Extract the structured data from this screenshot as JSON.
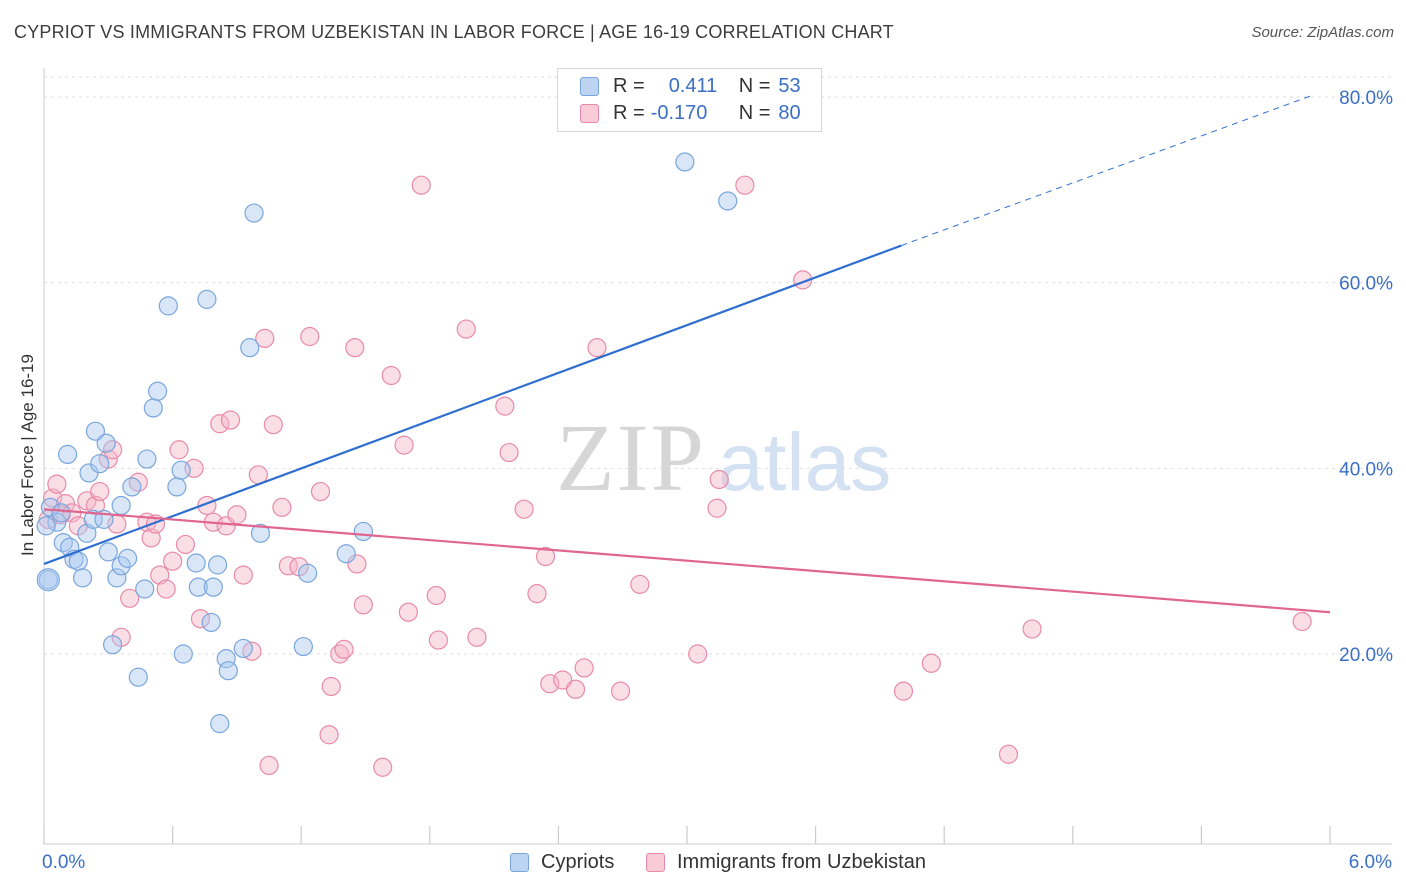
{
  "title": "CYPRIOT VS IMMIGRANTS FROM UZBEKISTAN IN LABOR FORCE | AGE 16-19 CORRELATION CHART",
  "source": "Source: ZipAtlas.com",
  "watermark": {
    "zip": "ZIP",
    "atlas": "atlas"
  },
  "legend": {
    "rows": [
      {
        "r_label": "R =",
        "r_value": "0.411",
        "n_label": "N =",
        "n_value": "53",
        "color": "#a9c7ef"
      },
      {
        "r_label": "R =",
        "r_value": "-0.170",
        "n_label": "N =",
        "n_value": "80",
        "color": "#f5b6c8"
      }
    ]
  },
  "bottom_legend": [
    {
      "label": "Cypriots",
      "color": "#a9c7ef"
    },
    {
      "label": "Immigrants from Uzbekistan",
      "color": "#f5b6c8"
    }
  ],
  "x_tick_left": "0.0%",
  "x_tick_right": "6.0%",
  "chart_data": {
    "type": "scatter",
    "title": "CYPRIOT VS IMMIGRANTS FROM UZBEKISTAN IN LABOR FORCE | AGE 16-19 CORRELATION CHART",
    "xlabel": "",
    "ylabel": "In Labor Force | Age 16-19",
    "xlim": [
      0,
      6.0
    ],
    "ylim": [
      0,
      82
    ],
    "y_ticks": [
      {
        "value": 20,
        "label": "20.0%"
      },
      {
        "value": 40,
        "label": "40.0%"
      },
      {
        "value": 60,
        "label": "60.0%"
      },
      {
        "value": 80,
        "label": "80.0%"
      }
    ],
    "x_ticks": [
      0,
      0.6,
      1.2,
      1.8,
      2.4,
      3.0,
      3.6,
      4.2,
      4.8,
      5.4,
      6.0
    ],
    "grid": true,
    "series": [
      {
        "name": "Cypriots",
        "color": "#a9c7ef",
        "stroke": "#7aa6dd",
        "trend": {
          "x": [
            0,
            4.0
          ],
          "y": [
            29.7,
            64.0
          ],
          "color": "#2f6fcf",
          "dashed_extension": {
            "x": [
              4.0,
              5.92
            ],
            "y": [
              64.0,
              80.2
            ]
          }
        },
        "points": [
          [
            0.03,
            35.8
          ],
          [
            0.06,
            34.2
          ],
          [
            0.08,
            35.2
          ],
          [
            0.09,
            32.0
          ],
          [
            0.11,
            41.5
          ],
          [
            0.12,
            31.5
          ],
          [
            0.14,
            30.2
          ],
          [
            0.16,
            30.0
          ],
          [
            0.18,
            28.2
          ],
          [
            0.2,
            33.0
          ],
          [
            0.21,
            39.5
          ],
          [
            0.23,
            34.5
          ],
          [
            0.24,
            44.0
          ],
          [
            0.26,
            40.5
          ],
          [
            0.28,
            34.5
          ],
          [
            0.29,
            42.7
          ],
          [
            0.3,
            31.0
          ],
          [
            0.32,
            21.0
          ],
          [
            0.34,
            28.2
          ],
          [
            0.36,
            36.0
          ],
          [
            0.36,
            29.5
          ],
          [
            0.39,
            30.3
          ],
          [
            0.41,
            38.0
          ],
          [
            0.44,
            17.5
          ],
          [
            0.47,
            27.0
          ],
          [
            0.48,
            41.0
          ],
          [
            0.51,
            46.5
          ],
          [
            0.53,
            48.3
          ],
          [
            0.58,
            57.5
          ],
          [
            0.62,
            38.0
          ],
          [
            0.64,
            39.8
          ],
          [
            0.65,
            20.0
          ],
          [
            0.71,
            29.8
          ],
          [
            0.72,
            27.2
          ],
          [
            0.76,
            58.2
          ],
          [
            0.78,
            23.4
          ],
          [
            0.79,
            27.2
          ],
          [
            0.81,
            29.6
          ],
          [
            0.82,
            12.5
          ],
          [
            0.85,
            19.5
          ],
          [
            0.86,
            18.2
          ],
          [
            0.93,
            20.6
          ],
          [
            0.96,
            53.0
          ],
          [
            0.98,
            67.5
          ],
          [
            1.01,
            33.0
          ],
          [
            1.21,
            20.8
          ],
          [
            1.23,
            28.7
          ],
          [
            1.41,
            30.8
          ],
          [
            1.49,
            33.2
          ],
          [
            2.99,
            73.0
          ],
          [
            3.19,
            68.8
          ],
          [
            0.02,
            28.0
          ],
          [
            0.01,
            33.8
          ]
        ]
      },
      {
        "name": "Immigrants from Uzbekistan",
        "color": "#f5b6c8",
        "stroke": "#e88aa8",
        "trend": {
          "x": [
            0,
            6.0
          ],
          "y": [
            35.6,
            24.5
          ],
          "color": "#e06590"
        },
        "points": [
          [
            0.02,
            34.5
          ],
          [
            0.04,
            36.8
          ],
          [
            0.06,
            38.3
          ],
          [
            0.08,
            35.0
          ],
          [
            0.1,
            36.2
          ],
          [
            0.13,
            35.2
          ],
          [
            0.16,
            33.8
          ],
          [
            0.2,
            36.5
          ],
          [
            0.24,
            36.0
          ],
          [
            0.26,
            37.5
          ],
          [
            0.3,
            41.0
          ],
          [
            0.32,
            42.0
          ],
          [
            0.34,
            34.0
          ],
          [
            0.36,
            21.8
          ],
          [
            0.4,
            26.0
          ],
          [
            0.44,
            38.5
          ],
          [
            0.48,
            34.2
          ],
          [
            0.5,
            32.5
          ],
          [
            0.52,
            34.0
          ],
          [
            0.54,
            28.5
          ],
          [
            0.57,
            27.0
          ],
          [
            0.6,
            30.0
          ],
          [
            0.63,
            42.0
          ],
          [
            0.66,
            31.8
          ],
          [
            0.7,
            40.0
          ],
          [
            0.73,
            23.8
          ],
          [
            0.76,
            36.0
          ],
          [
            0.79,
            34.2
          ],
          [
            0.82,
            44.8
          ],
          [
            0.85,
            33.8
          ],
          [
            0.87,
            45.2
          ],
          [
            0.9,
            35.0
          ],
          [
            0.93,
            28.5
          ],
          [
            0.97,
            20.3
          ],
          [
            1.0,
            39.3
          ],
          [
            1.03,
            54.0
          ],
          [
            1.05,
            8.0
          ],
          [
            1.07,
            44.7
          ],
          [
            1.11,
            35.8
          ],
          [
            1.14,
            29.5
          ],
          [
            1.19,
            29.4
          ],
          [
            1.24,
            54.2
          ],
          [
            1.29,
            37.5
          ],
          [
            1.34,
            16.5
          ],
          [
            1.33,
            11.3
          ],
          [
            1.38,
            20.0
          ],
          [
            1.4,
            20.5
          ],
          [
            1.45,
            53.0
          ],
          [
            1.46,
            29.7
          ],
          [
            1.49,
            25.3
          ],
          [
            1.58,
            7.8
          ],
          [
            1.62,
            50.0
          ],
          [
            1.68,
            42.5
          ],
          [
            1.7,
            24.5
          ],
          [
            1.83,
            26.3
          ],
          [
            1.84,
            21.5
          ],
          [
            1.97,
            55.0
          ],
          [
            2.02,
            21.8
          ],
          [
            2.15,
            46.7
          ],
          [
            2.17,
            41.7
          ],
          [
            2.24,
            35.6
          ],
          [
            2.3,
            26.5
          ],
          [
            2.34,
            30.5
          ],
          [
            2.36,
            16.8
          ],
          [
            2.42,
            17.2
          ],
          [
            2.48,
            16.2
          ],
          [
            2.52,
            18.5
          ],
          [
            2.58,
            53.0
          ],
          [
            2.69,
            16.0
          ],
          [
            2.78,
            27.5
          ],
          [
            3.05,
            20.0
          ],
          [
            3.14,
            35.7
          ],
          [
            3.15,
            38.8
          ],
          [
            3.27,
            70.5
          ],
          [
            3.54,
            60.3
          ],
          [
            4.01,
            16.0
          ],
          [
            4.14,
            19.0
          ],
          [
            4.5,
            9.2
          ],
          [
            4.61,
            22.7
          ],
          [
            5.87,
            23.5
          ]
        ]
      }
    ],
    "extra_pink_point": [
      1.76,
      70.5
    ]
  }
}
